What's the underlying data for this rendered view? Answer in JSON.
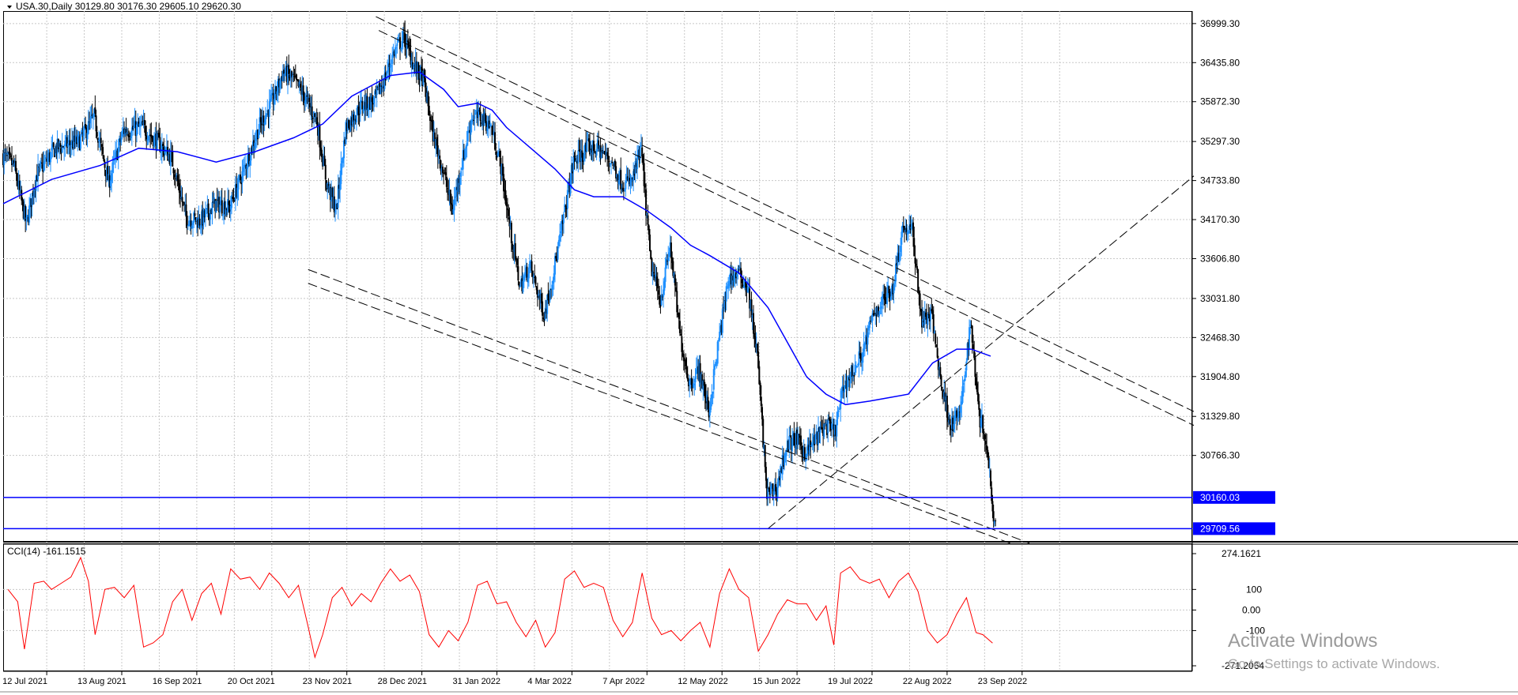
{
  "header": {
    "symbol_line": "USA.30,Daily  30129.80 30176.30 29605.10 29620.30"
  },
  "price_axis": {
    "ticks": [
      "36999.30",
      "36435.80",
      "35872.30",
      "35297.30",
      "34733.80",
      "34170.30",
      "33606.80",
      "33031.80",
      "32468.30",
      "31904.80",
      "31329.80",
      "30766.30"
    ],
    "tick_values": [
      36999.3,
      36435.8,
      35872.3,
      35297.3,
      34733.8,
      34170.3,
      33606.8,
      33031.8,
      32468.3,
      31904.8,
      31329.8,
      30766.3
    ],
    "range": [
      29520,
      37180
    ]
  },
  "hlines": [
    {
      "label": "30160.03",
      "value": 30160.03,
      "color": "#0000ff"
    },
    {
      "label": "29709.56",
      "value": 29709.56,
      "color": "#0000ff"
    }
  ],
  "date_axis": {
    "labels": [
      "12 Jul 2021",
      "13 Aug 2021",
      "16 Sep 2021",
      "20 Oct 2021",
      "23 Nov 2021",
      "28 Dec 2021",
      "31 Jan 2022",
      "4 Mar 2022",
      "7 Apr 2022",
      "12 May 2022",
      "15 Jun 2022",
      "19 Jul 2022",
      "22 Aug 2022",
      "23 Sep 2022"
    ]
  },
  "cci_panel": {
    "title": "CCI(14) -161.1515",
    "ticks": [
      "274.1621",
      "100",
      "0.00",
      "-100",
      "-271.2064"
    ],
    "tick_values": [
      274.1621,
      100,
      0,
      -100,
      -271.2064
    ],
    "range": [
      -271.2064,
      274.1621
    ],
    "line_color": "#ff0000"
  },
  "colors": {
    "bull": "#1e90ff",
    "bear": "#000000",
    "ma": "#0000ff",
    "grid": "#c8c8c8",
    "trend": "#000000"
  },
  "watermark": {
    "line1": "Activate Windows",
    "line2": "Go to Settings to activate Windows."
  },
  "chart_data": [
    {
      "type": "candlestick",
      "title": "USA.30,Daily",
      "price_points": [
        [
          0,
          35100
        ],
        [
          12,
          34950
        ],
        [
          25,
          34100
        ],
        [
          35,
          34800
        ],
        [
          55,
          35200
        ],
        [
          80,
          35300
        ],
        [
          95,
          35650
        ],
        [
          110,
          34700
        ],
        [
          125,
          35450
        ],
        [
          145,
          35500
        ],
        [
          160,
          35300
        ],
        [
          175,
          35050
        ],
        [
          190,
          34200
        ],
        [
          205,
          34150
        ],
        [
          220,
          34400
        ],
        [
          235,
          34350
        ],
        [
          250,
          34900
        ],
        [
          265,
          35500
        ],
        [
          280,
          35900
        ],
        [
          290,
          36300
        ],
        [
          300,
          36200
        ],
        [
          310,
          36000
        ],
        [
          325,
          35600
        ],
        [
          335,
          34700
        ],
        [
          345,
          34300
        ],
        [
          355,
          35500
        ],
        [
          370,
          35800
        ],
        [
          385,
          35900
        ],
        [
          395,
          36200
        ],
        [
          405,
          36600
        ],
        [
          415,
          36800
        ],
        [
          425,
          36400
        ],
        [
          435,
          36200
        ],
        [
          445,
          35400
        ],
        [
          455,
          34900
        ],
        [
          465,
          34300
        ],
        [
          475,
          35000
        ],
        [
          485,
          35650
        ],
        [
          495,
          35650
        ],
        [
          505,
          35500
        ],
        [
          515,
          34950
        ],
        [
          525,
          34000
        ],
        [
          535,
          33200
        ],
        [
          545,
          33500
        ],
        [
          560,
          32800
        ],
        [
          575,
          33800
        ],
        [
          590,
          35000
        ],
        [
          605,
          35200
        ],
        [
          615,
          35200
        ],
        [
          630,
          35000
        ],
        [
          640,
          34700
        ],
        [
          650,
          34700
        ],
        [
          660,
          35200
        ],
        [
          670,
          33500
        ],
        [
          680,
          33000
        ],
        [
          690,
          33800
        ],
        [
          700,
          32500
        ],
        [
          710,
          31800
        ],
        [
          720,
          32000
        ],
        [
          730,
          31400
        ],
        [
          740,
          32400
        ],
        [
          750,
          33300
        ],
        [
          760,
          33400
        ],
        [
          770,
          33200
        ],
        [
          780,
          32200
        ],
        [
          790,
          30200
        ],
        [
          800,
          30300
        ],
        [
          810,
          30900
        ],
        [
          820,
          31000
        ],
        [
          830,
          30800
        ],
        [
          840,
          31000
        ],
        [
          850,
          31200
        ],
        [
          860,
          31100
        ],
        [
          870,
          31800
        ],
        [
          880,
          32000
        ],
        [
          890,
          32300
        ],
        [
          900,
          32800
        ],
        [
          910,
          33000
        ],
        [
          920,
          33200
        ],
        [
          930,
          34050
        ],
        [
          940,
          34000
        ],
        [
          950,
          32700
        ],
        [
          960,
          32800
        ],
        [
          970,
          31800
        ],
        [
          980,
          31200
        ],
        [
          990,
          31400
        ],
        [
          1000,
          32700
        ],
        [
          1010,
          31300
        ],
        [
          1015,
          31100
        ],
        [
          1020,
          30500
        ],
        [
          1025,
          29800
        ]
      ],
      "ma_points": [
        [
          0,
          34400
        ],
        [
          50,
          34750
        ],
        [
          100,
          34950
        ],
        [
          140,
          35200
        ],
        [
          180,
          35150
        ],
        [
          220,
          35000
        ],
        [
          260,
          35150
        ],
        [
          300,
          35350
        ],
        [
          330,
          35550
        ],
        [
          360,
          35950
        ],
        [
          400,
          36250
        ],
        [
          430,
          36300
        ],
        [
          455,
          36050
        ],
        [
          470,
          35800
        ],
        [
          490,
          35850
        ],
        [
          505,
          35750
        ],
        [
          520,
          35500
        ],
        [
          545,
          35200
        ],
        [
          570,
          34900
        ],
        [
          590,
          34600
        ],
        [
          610,
          34500
        ],
        [
          640,
          34500
        ],
        [
          665,
          34300
        ],
        [
          690,
          34050
        ],
        [
          710,
          33800
        ],
        [
          730,
          33650
        ],
        [
          760,
          33400
        ],
        [
          790,
          32900
        ],
        [
          810,
          32400
        ],
        [
          830,
          31900
        ],
        [
          850,
          31650
        ],
        [
          870,
          31500
        ],
        [
          895,
          31550
        ],
        [
          915,
          31600
        ],
        [
          935,
          31650
        ],
        [
          960,
          32100
        ],
        [
          985,
          32300
        ],
        [
          1000,
          32300
        ],
        [
          1020,
          32200
        ]
      ],
      "trendlines": [
        {
          "from": [
            385,
            37100
          ],
          "to": [
            1510,
            31400
          ]
        },
        {
          "from": [
            388,
            36900
          ],
          "to": [
            1510,
            31200
          ]
        },
        {
          "from": [
            315,
            33450
          ],
          "to": [
            1060,
            29500
          ]
        },
        {
          "from": [
            315,
            33250
          ],
          "to": [
            1040,
            29500
          ]
        },
        {
          "from": [
            790,
            29710
          ],
          "to": [
            1510,
            34800
          ]
        }
      ]
    },
    {
      "type": "line",
      "title": "CCI(14) -161.1515",
      "points": [
        [
          5,
          100
        ],
        [
          15,
          40
        ],
        [
          22,
          -190
        ],
        [
          32,
          130
        ],
        [
          42,
          140
        ],
        [
          50,
          100
        ],
        [
          60,
          130
        ],
        [
          70,
          160
        ],
        [
          80,
          255
        ],
        [
          88,
          140
        ],
        [
          95,
          -120
        ],
        [
          105,
          100
        ],
        [
          115,
          110
        ],
        [
          125,
          60
        ],
        [
          135,
          120
        ],
        [
          145,
          -180
        ],
        [
          155,
          -160
        ],
        [
          165,
          -120
        ],
        [
          175,
          40
        ],
        [
          185,
          100
        ],
        [
          195,
          -50
        ],
        [
          205,
          80
        ],
        [
          215,
          130
        ],
        [
          225,
          -20
        ],
        [
          235,
          200
        ],
        [
          245,
          150
        ],
        [
          255,
          160
        ],
        [
          265,
          100
        ],
        [
          275,
          180
        ],
        [
          285,
          130
        ],
        [
          295,
          60
        ],
        [
          305,
          120
        ],
        [
          315,
          -80
        ],
        [
          322,
          -230
        ],
        [
          330,
          -120
        ],
        [
          340,
          60
        ],
        [
          350,
          110
        ],
        [
          360,
          20
        ],
        [
          370,
          80
        ],
        [
          380,
          40
        ],
        [
          390,
          130
        ],
        [
          400,
          200
        ],
        [
          410,
          140
        ],
        [
          420,
          170
        ],
        [
          430,
          90
        ],
        [
          440,
          -120
        ],
        [
          450,
          -180
        ],
        [
          460,
          -100
        ],
        [
          470,
          -150
        ],
        [
          480,
          -60
        ],
        [
          490,
          120
        ],
        [
          500,
          140
        ],
        [
          510,
          30
        ],
        [
          520,
          40
        ],
        [
          530,
          -60
        ],
        [
          540,
          -130
        ],
        [
          550,
          -50
        ],
        [
          560,
          -180
        ],
        [
          570,
          -110
        ],
        [
          580,
          150
        ],
        [
          590,
          190
        ],
        [
          600,
          110
        ],
        [
          610,
          130
        ],
        [
          620,
          110
        ],
        [
          630,
          -50
        ],
        [
          640,
          -130
        ],
        [
          650,
          -60
        ],
        [
          660,
          180
        ],
        [
          670,
          -40
        ],
        [
          680,
          -120
        ],
        [
          690,
          -100
        ],
        [
          700,
          -150
        ],
        [
          710,
          -100
        ],
        [
          720,
          -60
        ],
        [
          730,
          -180
        ],
        [
          740,
          80
        ],
        [
          750,
          200
        ],
        [
          760,
          100
        ],
        [
          770,
          60
        ],
        [
          780,
          -200
        ],
        [
          790,
          -120
        ],
        [
          800,
          -20
        ],
        [
          810,
          50
        ],
        [
          820,
          30
        ],
        [
          830,
          30
        ],
        [
          840,
          -50
        ],
        [
          850,
          20
        ],
        [
          858,
          -170
        ],
        [
          865,
          180
        ],
        [
          875,
          210
        ],
        [
          885,
          150
        ],
        [
          895,
          130
        ],
        [
          905,
          150
        ],
        [
          915,
          60
        ],
        [
          925,
          140
        ],
        [
          935,
          180
        ],
        [
          945,
          90
        ],
        [
          955,
          -100
        ],
        [
          965,
          -160
        ],
        [
          975,
          -120
        ],
        [
          985,
          -20
        ],
        [
          995,
          60
        ],
        [
          1005,
          -110
        ],
        [
          1012,
          -120
        ],
        [
          1022,
          -161
        ]
      ]
    }
  ]
}
